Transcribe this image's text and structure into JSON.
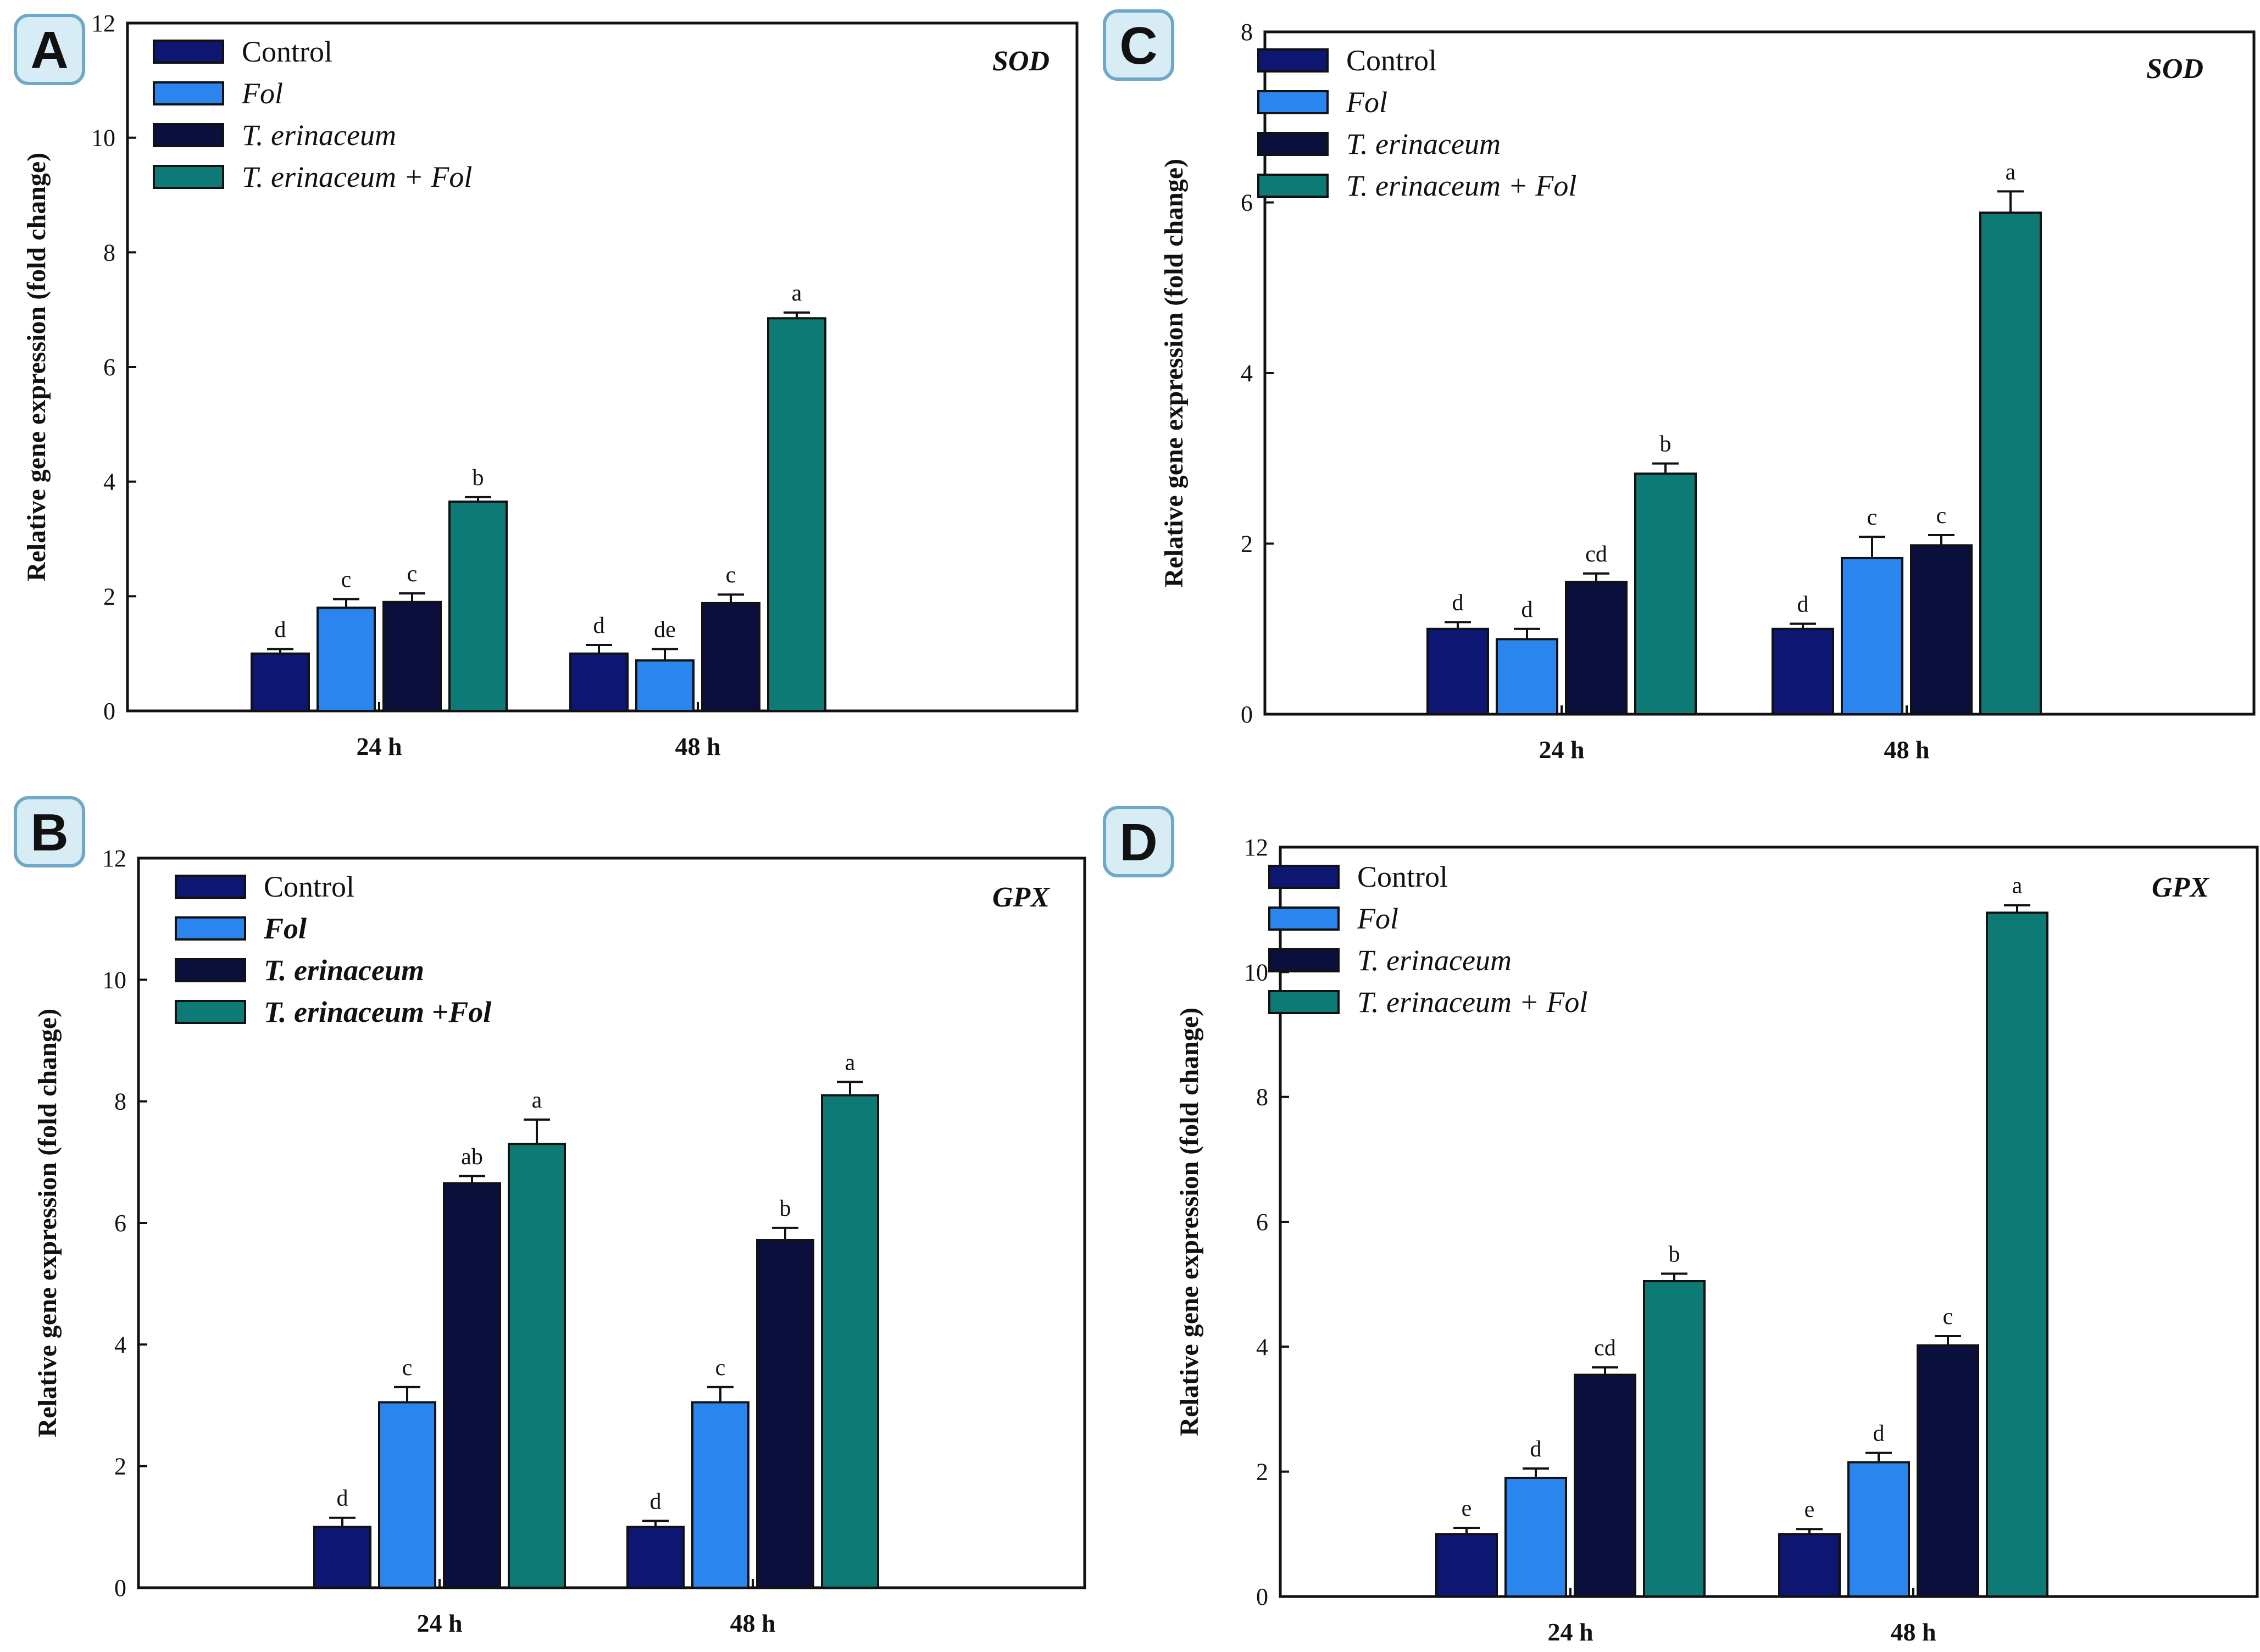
{
  "colors": {
    "Control": "#0d1670",
    "Fol": "#2a86ee",
    "T. erinaceum": "#0a0f3c",
    "T. erinaceum + Fol": "#0d7a76",
    "badge_bg": "#d8ecf6",
    "badge_border": "#6fa9c9"
  },
  "chart_data": [
    {
      "panel": "A",
      "type": "bar",
      "title": "SOD",
      "ylabel": "Relative gene expression (fold change)",
      "xlabel": "",
      "ylim": [
        0,
        12
      ],
      "yticks": [
        "0",
        "2",
        "4",
        "6",
        "8",
        "10",
        "12"
      ],
      "categories": [
        "24 h",
        "48 h"
      ],
      "legend": [
        "Control",
        "Fol",
        "T. erinaceum",
        "T. erinaceum + Fol"
      ],
      "legend_position": "top-left",
      "series": [
        {
          "name": "Control",
          "values": [
            1.0,
            1.0
          ],
          "errors": [
            0.08,
            0.15
          ],
          "labels": [
            "d",
            "d"
          ]
        },
        {
          "name": "Fol",
          "values": [
            1.8,
            0.88
          ],
          "errors": [
            0.15,
            0.2
          ],
          "labels": [
            "c",
            "de"
          ]
        },
        {
          "name": "T. erinaceum",
          "values": [
            1.9,
            1.88
          ],
          "errors": [
            0.15,
            0.15
          ],
          "labels": [
            "c",
            "c"
          ]
        },
        {
          "name": "T. erinaceum + Fol",
          "values": [
            3.65,
            6.85
          ],
          "errors": [
            0.08,
            0.1
          ],
          "labels": [
            "b",
            "a"
          ]
        }
      ]
    },
    {
      "panel": "C",
      "type": "bar",
      "title": "SOD",
      "ylabel": "Relative gene expression (fold change)",
      "xlabel": "",
      "ylim": [
        0,
        8
      ],
      "yticks": [
        "0",
        "2",
        "4",
        "6",
        "8"
      ],
      "categories": [
        "24 h",
        "48 h"
      ],
      "legend": [
        "Control",
        "Fol",
        "T. erinaceum",
        "T. erinaceum + Fol"
      ],
      "legend_position": "top-left",
      "series": [
        {
          "name": "Control",
          "values": [
            1.0,
            1.0
          ],
          "errors": [
            0.08,
            0.06
          ],
          "labels": [
            "d",
            "d"
          ]
        },
        {
          "name": "Fol",
          "values": [
            0.88,
            1.83
          ],
          "errors": [
            0.12,
            0.25
          ],
          "labels": [
            "d",
            "c"
          ]
        },
        {
          "name": "T. erinaceum",
          "values": [
            1.55,
            1.98
          ],
          "errors": [
            0.1,
            0.12
          ],
          "labels": [
            "cd",
            "c"
          ]
        },
        {
          "name": "T. erinaceum + Fol",
          "values": [
            2.82,
            5.88
          ],
          "errors": [
            0.12,
            0.25
          ],
          "labels": [
            "b",
            "a"
          ]
        }
      ]
    },
    {
      "panel": "B",
      "type": "bar",
      "title": "GPX",
      "ylabel": "Relative gene expression (fold change)",
      "xlabel": "",
      "ylim": [
        0,
        12
      ],
      "yticks": [
        "0",
        "2",
        "4",
        "6",
        "8",
        "10",
        "12"
      ],
      "categories": [
        "24 h",
        "48 h"
      ],
      "legend": [
        "Control",
        "Fol",
        "T. erinaceum",
        "T. erinaceum +Fol"
      ],
      "legend_position": "top-left",
      "series": [
        {
          "name": "Control",
          "values": [
            1.0,
            1.0
          ],
          "errors": [
            0.15,
            0.1
          ],
          "labels": [
            "d",
            "d"
          ]
        },
        {
          "name": "Fol",
          "values": [
            3.05,
            3.05
          ],
          "errors": [
            0.25,
            0.25
          ],
          "labels": [
            "c",
            "c"
          ]
        },
        {
          "name": "T. erinaceum",
          "values": [
            6.65,
            5.72
          ],
          "errors": [
            0.12,
            0.2
          ],
          "labels": [
            "ab",
            "b"
          ]
        },
        {
          "name": "T. erinaceum + Fol",
          "values": [
            7.3,
            8.1
          ],
          "errors": [
            0.4,
            0.22
          ],
          "labels": [
            "a",
            "a"
          ]
        }
      ]
    },
    {
      "panel": "D",
      "type": "bar",
      "title": "GPX",
      "ylabel": "Relative gene expression (fold change)",
      "xlabel": "",
      "ylim": [
        0,
        12
      ],
      "yticks": [
        "0",
        "2",
        "4",
        "6",
        "8",
        "10",
        "12"
      ],
      "categories": [
        "24 h",
        "48 h"
      ],
      "legend": [
        "Control",
        "Fol",
        "T. erinaceum",
        "T. erinaceum + Fol"
      ],
      "legend_position": "top-left",
      "series": [
        {
          "name": "Control",
          "values": [
            1.0,
            1.0
          ],
          "errors": [
            0.1,
            0.08
          ],
          "labels": [
            "e",
            "e"
          ]
        },
        {
          "name": "Fol",
          "values": [
            1.9,
            2.15
          ],
          "errors": [
            0.15,
            0.15
          ],
          "labels": [
            "d",
            "d"
          ]
        },
        {
          "name": "T. erinaceum",
          "values": [
            3.55,
            4.02
          ],
          "errors": [
            0.12,
            0.15
          ],
          "labels": [
            "cd",
            "c"
          ]
        },
        {
          "name": "T. erinaceum + Fol",
          "values": [
            5.05,
            10.95
          ],
          "errors": [
            0.12,
            0.12
          ],
          "labels": [
            "b",
            "a"
          ]
        }
      ]
    }
  ]
}
